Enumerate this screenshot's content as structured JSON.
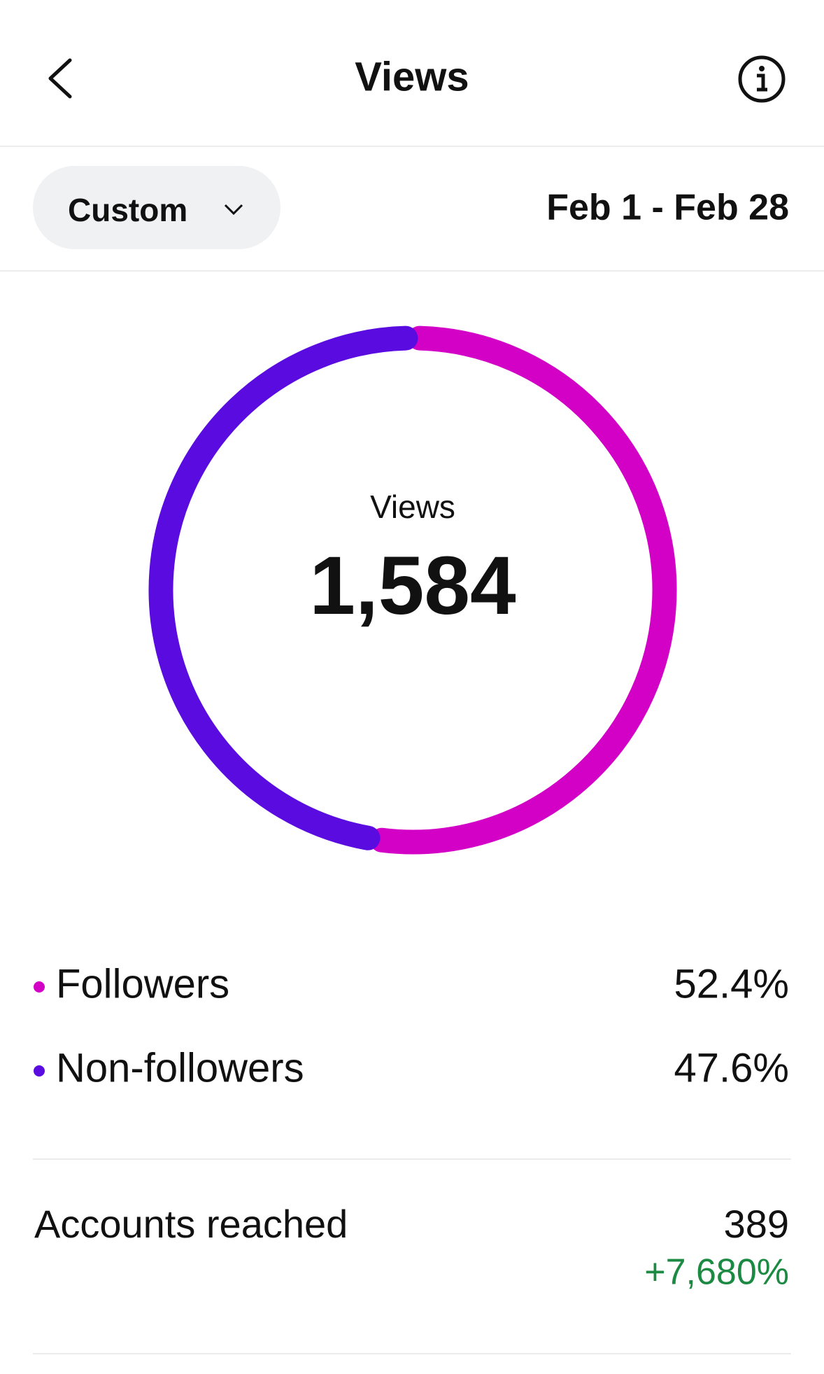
{
  "header": {
    "title": "Views"
  },
  "filter": {
    "label": "Custom",
    "date_range": "Feb 1 - Feb 28"
  },
  "chart_data": {
    "type": "donut",
    "center_label": "Views",
    "total": "1,584",
    "categories": [
      "Followers",
      "Non-followers"
    ],
    "values": [
      52.4,
      47.6
    ],
    "value_labels": [
      "52.4%",
      "47.6%"
    ],
    "colors": [
      "#d300c5",
      "#5a0be0"
    ]
  },
  "accounts_reached": {
    "label": "Accounts reached",
    "value": "389",
    "change": "+7,680%"
  }
}
